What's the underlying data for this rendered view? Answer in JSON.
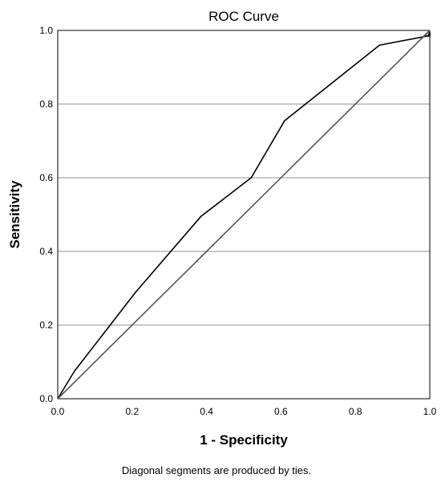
{
  "chart_data": {
    "type": "line",
    "title": "ROC Curve",
    "xlabel": "1 - Specificity",
    "ylabel": "Sensitivity",
    "xlim": [
      0,
      1
    ],
    "ylim": [
      0,
      1
    ],
    "x_ticks": [
      "0.0",
      "0.2",
      "0.4",
      "0.6",
      "0.8",
      "1.0"
    ],
    "y_ticks": [
      "0.0",
      "0.2",
      "0.4",
      "0.6",
      "0.8",
      "1.0"
    ],
    "grid": "horizontal",
    "footnote": "Diagonal segments are produced by ties.",
    "series": [
      {
        "x": [
          0.0,
          0.045,
          0.21,
          0.385,
          0.52,
          0.61,
          0.865,
          0.995,
          1.0,
          1.0,
          0.985,
          1.0
        ],
        "y": [
          0.0,
          0.075,
          0.29,
          0.495,
          0.6,
          0.755,
          0.96,
          0.985,
          0.995,
          0.985,
          0.985,
          1.0
        ],
        "color": "#000000"
      },
      {
        "x": [
          0.0,
          1.0
        ],
        "y": [
          0.0,
          1.0
        ],
        "color": "#555555"
      }
    ]
  }
}
